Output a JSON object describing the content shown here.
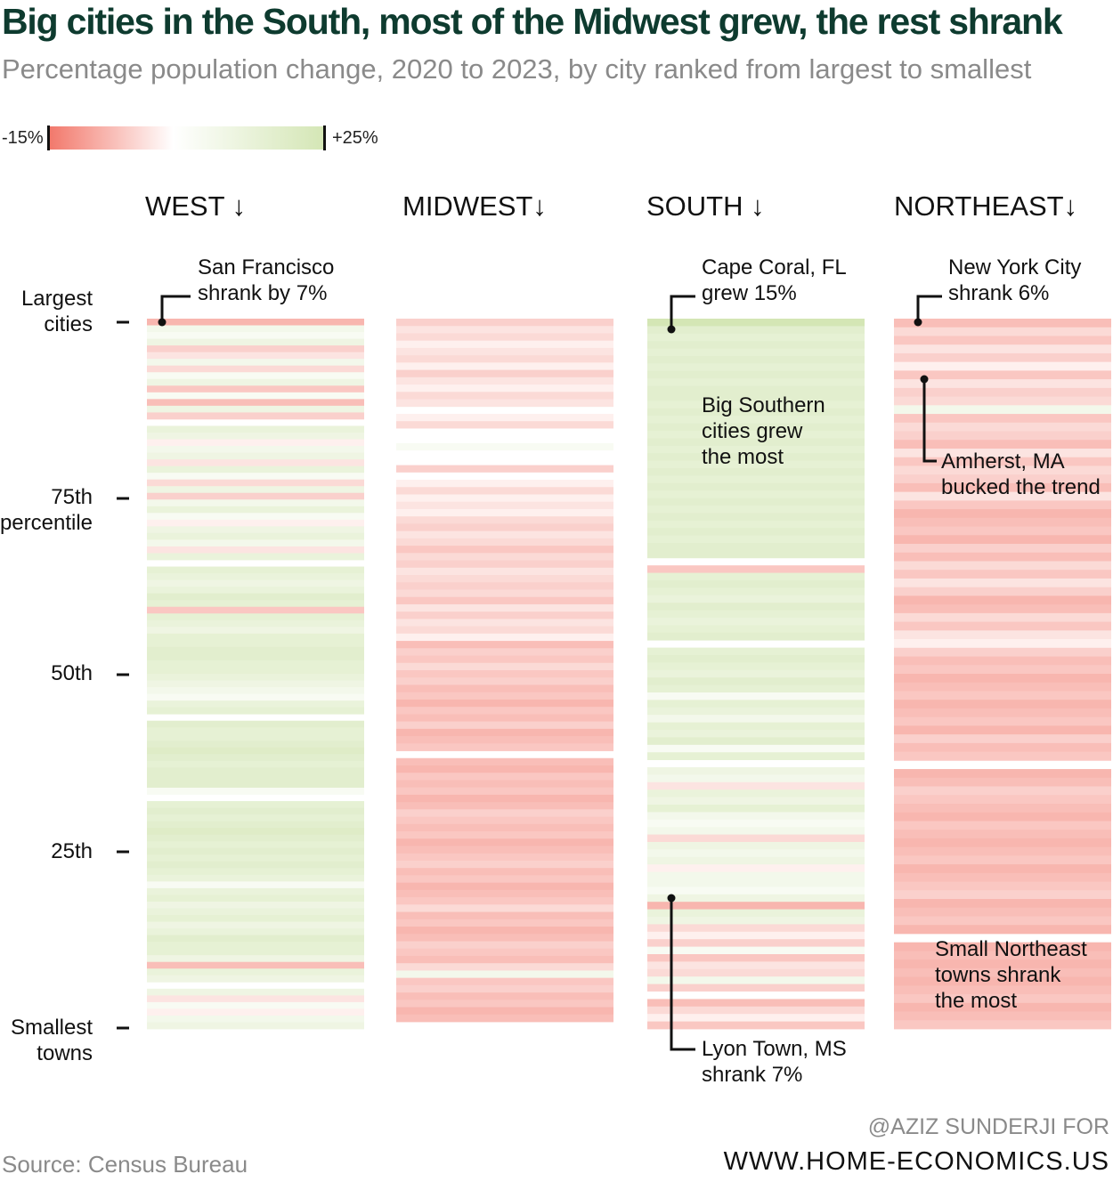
{
  "title": "Big cities in the South, most of the Midwest grew, the rest shrank",
  "subtitle": "Percentage population change, 2020 to 2023, by city ranked from largest to smallest",
  "legend": {
    "min_label": "-15%",
    "max_label": "+25%",
    "min_color": "#f2786b",
    "mid_color": "#ffffff",
    "max_color": "#d4e6b5"
  },
  "y_axis_labels": [
    "Largest\ncities",
    "75th\npercentile",
    "50th",
    "25th",
    "Smallest\ntowns"
  ],
  "source": "Source: Census Bureau",
  "credit": {
    "line1": "@AZIZ SUNDERJI FOR",
    "line2": "WWW.HOME-ECONOMICS.US"
  },
  "annotations": {
    "sf": "San Francisco\nshrank by 7%",
    "cape_coral": "Cape Coral, FL\ngrew 15%",
    "big_southern": "Big Southern\ncities grew\nthe most",
    "nyc": "New York City\nshrank 6%",
    "amherst": "Amherst, MA\nbucked the trend",
    "small_ne": "Small Northeast\ntowns shrank\nthe most",
    "lyon": "Lyon Town, MS\nshrank 7%"
  },
  "chart_data": {
    "type": "heatmap",
    "title": "Big cities in the South, most of the Midwest grew, the rest shrank",
    "subtitle": "Percentage population change, 2020 to 2023, by city ranked from largest to smallest",
    "color_scale": {
      "min": -15,
      "max": 25,
      "unit": "%"
    },
    "y_ticks": [
      "Largest cities",
      "75th percentile",
      "50th",
      "25th",
      "Smallest towns"
    ],
    "series": [
      {
        "name": "WEST",
        "values": [
          -7,
          2,
          1,
          3,
          -4,
          -2,
          2,
          -3,
          1,
          3,
          -5,
          1,
          -6,
          3,
          -4,
          null,
          4,
          3,
          -1,
          2,
          3,
          -2,
          4,
          1,
          -3,
          3,
          -4,
          2,
          4,
          1,
          -1,
          3,
          4,
          2,
          -2,
          4,
          null,
          5,
          4,
          3,
          4,
          6,
          5,
          -5,
          5,
          4,
          3,
          5,
          5,
          6,
          6,
          5,
          5,
          4,
          3,
          2,
          1,
          4,
          5,
          null,
          6,
          5,
          5,
          6,
          7,
          6,
          5,
          6,
          6,
          6,
          1,
          null,
          5,
          6,
          5,
          6,
          7,
          6,
          5,
          6,
          5,
          6,
          5,
          4,
          1,
          4,
          5,
          3,
          4,
          5,
          3,
          4,
          6,
          5,
          5,
          3,
          -6,
          4,
          3,
          null,
          3,
          -2,
          1,
          -1,
          2,
          3
        ]
      },
      {
        "name": "MIDWEST",
        "values": [
          -4,
          -2,
          -3,
          -1,
          -2,
          -3,
          -1,
          -4,
          -2,
          -1,
          -3,
          -2,
          null,
          -1,
          -3,
          0,
          0,
          1,
          0,
          0,
          -4,
          0,
          -1,
          -3,
          -1,
          -2,
          -1,
          -3,
          -4,
          -2,
          -3,
          -5,
          -3,
          -4,
          -2,
          -3,
          -4,
          -3,
          -5,
          -2,
          -4,
          -2,
          -3,
          -1,
          -6,
          -4,
          -5,
          -3,
          -5,
          -4,
          -6,
          -5,
          -7,
          -5,
          -6,
          -4,
          -7,
          -6,
          -5,
          null,
          -6,
          -7,
          -5,
          -6,
          -5,
          -7,
          -6,
          -4,
          -5,
          -6,
          -5,
          -7,
          -6,
          -5,
          -4,
          -6,
          -5,
          -7,
          -6,
          -5,
          -3,
          -6,
          -5,
          -7,
          -6,
          -4,
          -5,
          -6,
          -3,
          2,
          -5,
          -4,
          -6,
          -5,
          -7,
          -6
        ]
      },
      {
        "name": "SOUTH",
        "values": [
          15,
          6,
          5,
          6,
          5,
          6,
          5,
          6,
          5,
          6,
          6,
          5,
          6,
          5,
          6,
          5,
          6,
          5,
          6,
          5,
          6,
          5,
          6,
          5,
          6,
          5,
          6,
          5,
          6,
          5,
          6,
          6,
          null,
          -5,
          5,
          6,
          5,
          4,
          6,
          5,
          4,
          5,
          6,
          null,
          5,
          6,
          5,
          4,
          6,
          5,
          1,
          5,
          4,
          2,
          5,
          4,
          6,
          1,
          5,
          null,
          3,
          2,
          -2,
          4,
          3,
          5,
          2,
          1,
          2,
          -3,
          3,
          2,
          3,
          -1,
          2,
          2,
          1,
          3,
          -7,
          4,
          3,
          -3,
          -1,
          -4,
          1,
          -5,
          -2,
          -3,
          2,
          -4,
          0,
          -6,
          -3,
          -1,
          -5
        ]
      },
      {
        "name": "NORTHEAST",
        "values": [
          -6,
          -3,
          -5,
          -2,
          -4,
          -1,
          -5,
          -2,
          -4,
          -3,
          2,
          -5,
          -3,
          -4,
          -6,
          -2,
          -5,
          -3,
          -4,
          -6,
          -2,
          -5,
          -7,
          -6,
          -5,
          -7,
          -4,
          -6,
          -3,
          -5,
          -2,
          -4,
          -7,
          -6,
          -3,
          -5,
          -2,
          -1,
          -4,
          -6,
          -5,
          -7,
          -6,
          -5,
          -7,
          -6,
          -5,
          -7,
          -4,
          -6,
          -5,
          null,
          -7,
          -6,
          -4,
          -5,
          -6,
          -7,
          -5,
          -6,
          -7,
          -6,
          -5,
          -7,
          -6,
          -5,
          -4,
          -7,
          -6,
          -5,
          -7,
          null,
          -7,
          -6,
          -7,
          -6,
          -7,
          -6,
          -5,
          -7,
          -6,
          -5
        ]
      }
    ]
  }
}
